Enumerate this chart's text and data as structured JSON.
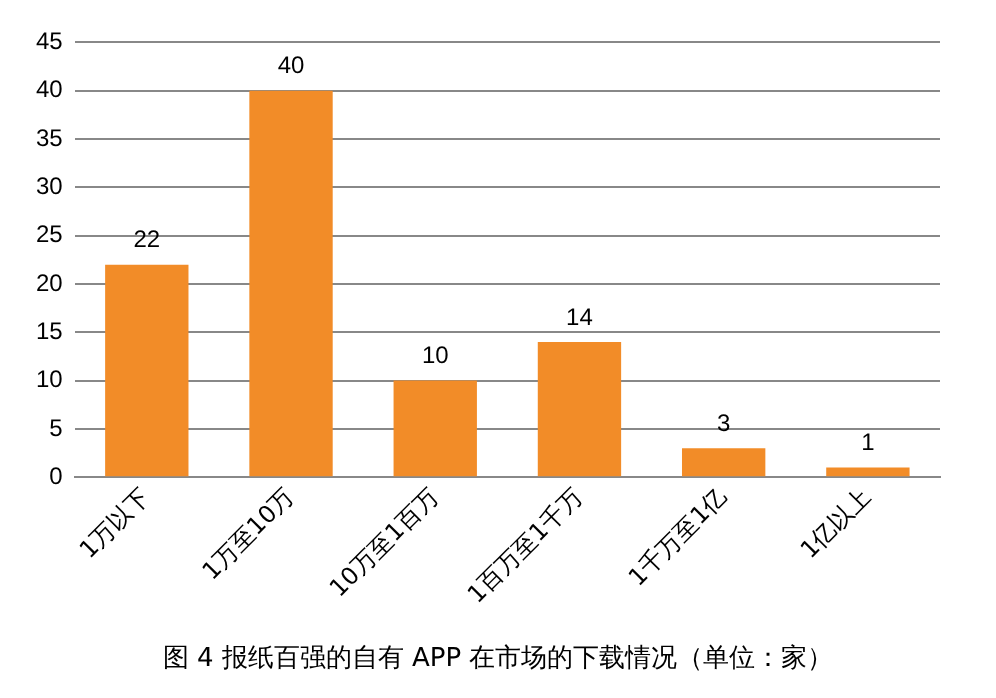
{
  "chart_data": {
    "type": "bar",
    "title": "图 4 报纸百强的自有 APP 在市场的下载情况（单位：家）",
    "categories": [
      "1万以下",
      "1万至10万",
      "10万至1百万",
      "1百万至1千万",
      "1千万至1亿",
      "1亿以上"
    ],
    "values": [
      22,
      40,
      10,
      14,
      3,
      1
    ],
    "color": "#f28c28",
    "ylim": [
      0,
      45
    ],
    "yticks": [
      0,
      5,
      10,
      15,
      20,
      25,
      30,
      35,
      40,
      45
    ],
    "grid": "y",
    "data_labels": true
  }
}
